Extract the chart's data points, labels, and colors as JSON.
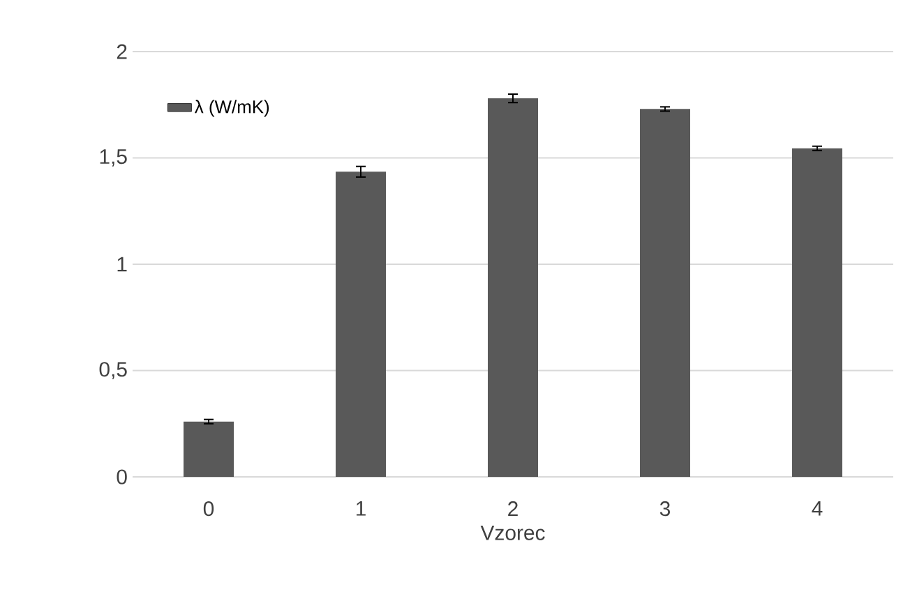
{
  "chart_data": {
    "type": "bar",
    "xlabel": "Vzorec",
    "categories": [
      "0",
      "1",
      "2",
      "3",
      "4"
    ],
    "series": [
      {
        "name": "λ (W/mK)",
        "color": "#595959",
        "values": [
          0.26,
          1.435,
          1.78,
          1.73,
          1.545
        ],
        "errors": [
          0.01,
          0.025,
          0.02,
          0.01,
          0.01
        ]
      }
    ],
    "ylim": [
      0,
      2
    ],
    "yticks": [
      0,
      {
        "value": 0.5,
        "label": "0,5"
      },
      1,
      {
        "value": 1.5,
        "label": "1,5"
      },
      2
    ],
    "grid": "y",
    "legend": "top left"
  }
}
